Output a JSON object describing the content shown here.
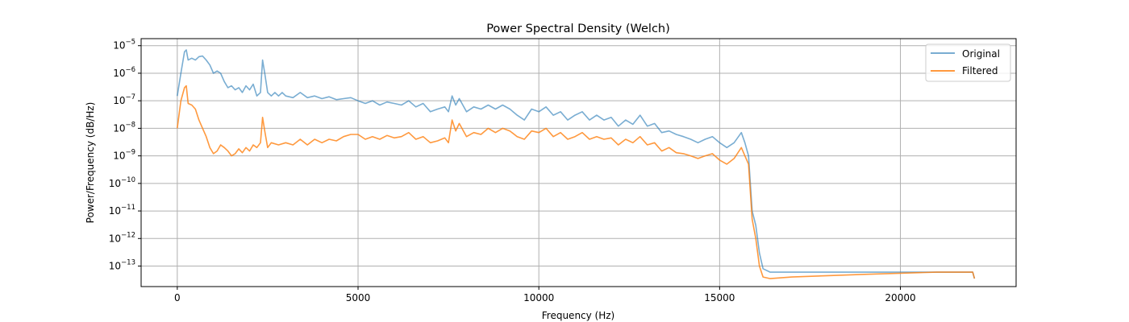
{
  "chart_data": {
    "type": "line",
    "title": "Power Spectral Density (Welch)",
    "xlabel": "Frequency (Hz)",
    "ylabel": "Power/Frequency (dB/Hz)",
    "xlim": [
      -1000,
      23200
    ],
    "ylim": [
      1.8e-14,
      1.8e-05
    ],
    "yscale": "log",
    "grid": true,
    "legend_position": "top-right",
    "x_ticks": [
      0,
      5000,
      10000,
      15000,
      20000
    ],
    "x_tick_labels": [
      "0",
      "5000",
      "10000",
      "15000",
      "20000"
    ],
    "y_ticks": [
      -13,
      -12,
      -11,
      -10,
      -9,
      -8,
      -7,
      -6,
      -5
    ],
    "y_tick_labels": [
      {
        "base": "10",
        "exp": "−13"
      },
      {
        "base": "10",
        "exp": "−12"
      },
      {
        "base": "10",
        "exp": "−11"
      },
      {
        "base": "10",
        "exp": "−10"
      },
      {
        "base": "10",
        "exp": "−9"
      },
      {
        "base": "10",
        "exp": "−8"
      },
      {
        "base": "10",
        "exp": "−7"
      },
      {
        "base": "10",
        "exp": "−6"
      },
      {
        "base": "10",
        "exp": "−5"
      }
    ],
    "series": [
      {
        "name": "Original",
        "color": "#1f77b4",
        "opacity": 0.6,
        "points": [
          [
            0,
            1.5e-07
          ],
          [
            100,
            1e-06
          ],
          [
            200,
            6e-06
          ],
          [
            250,
            7e-06
          ],
          [
            300,
            3e-06
          ],
          [
            400,
            3.5e-06
          ],
          [
            500,
            3e-06
          ],
          [
            600,
            4e-06
          ],
          [
            700,
            4.2e-06
          ],
          [
            800,
            3e-06
          ],
          [
            900,
            2e-06
          ],
          [
            1000,
            1e-06
          ],
          [
            1100,
            1.2e-06
          ],
          [
            1200,
            1e-06
          ],
          [
            1300,
            5e-07
          ],
          [
            1400,
            3e-07
          ],
          [
            1500,
            3.5e-07
          ],
          [
            1600,
            2.5e-07
          ],
          [
            1700,
            3e-07
          ],
          [
            1800,
            2e-07
          ],
          [
            1900,
            3.5e-07
          ],
          [
            2000,
            2.5e-07
          ],
          [
            2100,
            4e-07
          ],
          [
            2200,
            1.5e-07
          ],
          [
            2300,
            2e-07
          ],
          [
            2360,
            3e-06
          ],
          [
            2420,
            1e-06
          ],
          [
            2500,
            2e-07
          ],
          [
            2600,
            1.5e-07
          ],
          [
            2700,
            2e-07
          ],
          [
            2800,
            1.5e-07
          ],
          [
            2900,
            2e-07
          ],
          [
            3000,
            1.5e-07
          ],
          [
            3200,
            1.3e-07
          ],
          [
            3400,
            2e-07
          ],
          [
            3600,
            1.3e-07
          ],
          [
            3800,
            1.5e-07
          ],
          [
            4000,
            1.2e-07
          ],
          [
            4200,
            1.4e-07
          ],
          [
            4400,
            1.1e-07
          ],
          [
            4600,
            1.2e-07
          ],
          [
            4800,
            1.3e-07
          ],
          [
            5000,
            1e-07
          ],
          [
            5200,
            8e-08
          ],
          [
            5400,
            1e-07
          ],
          [
            5600,
            7e-08
          ],
          [
            5800,
            9e-08
          ],
          [
            6000,
            8e-08
          ],
          [
            6200,
            7e-08
          ],
          [
            6400,
            1e-07
          ],
          [
            6600,
            6e-08
          ],
          [
            6800,
            8e-08
          ],
          [
            7000,
            4e-08
          ],
          [
            7200,
            5e-08
          ],
          [
            7400,
            6e-08
          ],
          [
            7500,
            4e-08
          ],
          [
            7600,
            1.5e-07
          ],
          [
            7700,
            7e-08
          ],
          [
            7800,
            1.2e-07
          ],
          [
            8000,
            4e-08
          ],
          [
            8200,
            6e-08
          ],
          [
            8400,
            5e-08
          ],
          [
            8600,
            7e-08
          ],
          [
            8800,
            5e-08
          ],
          [
            9000,
            7e-08
          ],
          [
            9200,
            5e-08
          ],
          [
            9400,
            3e-08
          ],
          [
            9600,
            2e-08
          ],
          [
            9800,
            5e-08
          ],
          [
            10000,
            4e-08
          ],
          [
            10200,
            6e-08
          ],
          [
            10400,
            3e-08
          ],
          [
            10600,
            4e-08
          ],
          [
            10800,
            2e-08
          ],
          [
            11000,
            3e-08
          ],
          [
            11200,
            4e-08
          ],
          [
            11400,
            2e-08
          ],
          [
            11600,
            3e-08
          ],
          [
            11800,
            2e-08
          ],
          [
            12000,
            2.5e-08
          ],
          [
            12200,
            1.2e-08
          ],
          [
            12400,
            2e-08
          ],
          [
            12600,
            1.4e-08
          ],
          [
            12800,
            3e-08
          ],
          [
            13000,
            1.2e-08
          ],
          [
            13200,
            1.5e-08
          ],
          [
            13400,
            7e-09
          ],
          [
            13600,
            8e-09
          ],
          [
            13800,
            6e-09
          ],
          [
            14000,
            5e-09
          ],
          [
            14200,
            4e-09
          ],
          [
            14400,
            3e-09
          ],
          [
            14600,
            4e-09
          ],
          [
            14800,
            5e-09
          ],
          [
            15000,
            3e-09
          ],
          [
            15200,
            2e-09
          ],
          [
            15400,
            3e-09
          ],
          [
            15600,
            7e-09
          ],
          [
            15700,
            3e-09
          ],
          [
            15800,
            1e-09
          ],
          [
            15900,
            1e-11
          ],
          [
            16000,
            3e-12
          ],
          [
            16100,
            3e-13
          ],
          [
            16200,
            8e-14
          ],
          [
            16400,
            6e-14
          ],
          [
            17000,
            6e-14
          ],
          [
            18000,
            6e-14
          ],
          [
            19000,
            6e-14
          ],
          [
            20000,
            6e-14
          ],
          [
            21000,
            6e-14
          ],
          [
            22000,
            6e-14
          ],
          [
            22050,
            3.5e-14
          ]
        ]
      },
      {
        "name": "Filtered",
        "color": "#ff7f0e",
        "opacity": 0.8,
        "points": [
          [
            0,
            1e-08
          ],
          [
            100,
            1e-07
          ],
          [
            200,
            3e-07
          ],
          [
            250,
            3.5e-07
          ],
          [
            300,
            8e-08
          ],
          [
            400,
            7e-08
          ],
          [
            500,
            5e-08
          ],
          [
            600,
            2e-08
          ],
          [
            700,
            1e-08
          ],
          [
            800,
            5e-09
          ],
          [
            900,
            2e-09
          ],
          [
            1000,
            1.2e-09
          ],
          [
            1100,
            1.5e-09
          ],
          [
            1200,
            2.5e-09
          ],
          [
            1300,
            2e-09
          ],
          [
            1400,
            1.5e-09
          ],
          [
            1500,
            1e-09
          ],
          [
            1600,
            1.2e-09
          ],
          [
            1700,
            1.8e-09
          ],
          [
            1800,
            1.3e-09
          ],
          [
            1900,
            2e-09
          ],
          [
            2000,
            1.5e-09
          ],
          [
            2100,
            2.5e-09
          ],
          [
            2200,
            2e-09
          ],
          [
            2300,
            3e-09
          ],
          [
            2360,
            2.5e-08
          ],
          [
            2420,
            8e-09
          ],
          [
            2500,
            2e-09
          ],
          [
            2600,
            3e-09
          ],
          [
            2800,
            2.5e-09
          ],
          [
            3000,
            3e-09
          ],
          [
            3200,
            2.5e-09
          ],
          [
            3400,
            4e-09
          ],
          [
            3600,
            2.5e-09
          ],
          [
            3800,
            4e-09
          ],
          [
            4000,
            3e-09
          ],
          [
            4200,
            4e-09
          ],
          [
            4400,
            3.5e-09
          ],
          [
            4600,
            5e-09
          ],
          [
            4800,
            6e-09
          ],
          [
            5000,
            6e-09
          ],
          [
            5200,
            4e-09
          ],
          [
            5400,
            5e-09
          ],
          [
            5600,
            4e-09
          ],
          [
            5800,
            5.5e-09
          ],
          [
            6000,
            4.5e-09
          ],
          [
            6200,
            5e-09
          ],
          [
            6400,
            7e-09
          ],
          [
            6600,
            4e-09
          ],
          [
            6800,
            5e-09
          ],
          [
            7000,
            3e-09
          ],
          [
            7200,
            3.5e-09
          ],
          [
            7400,
            4.5e-09
          ],
          [
            7500,
            3e-09
          ],
          [
            7600,
            2e-08
          ],
          [
            7700,
            8e-09
          ],
          [
            7800,
            1.5e-08
          ],
          [
            8000,
            5e-09
          ],
          [
            8200,
            7e-09
          ],
          [
            8400,
            6e-09
          ],
          [
            8600,
            1e-08
          ],
          [
            8800,
            7e-09
          ],
          [
            9000,
            1e-08
          ],
          [
            9200,
            8e-09
          ],
          [
            9400,
            5e-09
          ],
          [
            9600,
            4e-09
          ],
          [
            9800,
            8e-09
          ],
          [
            10000,
            7e-09
          ],
          [
            10200,
            1e-08
          ],
          [
            10400,
            5e-09
          ],
          [
            10600,
            7e-09
          ],
          [
            10800,
            4e-09
          ],
          [
            11000,
            5e-09
          ],
          [
            11200,
            7e-09
          ],
          [
            11400,
            4e-09
          ],
          [
            11600,
            5e-09
          ],
          [
            11800,
            4e-09
          ],
          [
            12000,
            4.5e-09
          ],
          [
            12200,
            2.5e-09
          ],
          [
            12400,
            4e-09
          ],
          [
            12600,
            3e-09
          ],
          [
            12800,
            5e-09
          ],
          [
            13000,
            2.5e-09
          ],
          [
            13200,
            3e-09
          ],
          [
            13400,
            1.5e-09
          ],
          [
            13600,
            2e-09
          ],
          [
            13800,
            1.3e-09
          ],
          [
            14000,
            1.2e-09
          ],
          [
            14200,
            1e-09
          ],
          [
            14400,
            8e-10
          ],
          [
            14600,
            1e-09
          ],
          [
            14800,
            1.2e-09
          ],
          [
            15000,
            7e-10
          ],
          [
            15200,
            5e-10
          ],
          [
            15400,
            8e-10
          ],
          [
            15600,
            2e-09
          ],
          [
            15700,
            1e-09
          ],
          [
            15800,
            5e-10
          ],
          [
            15900,
            5e-12
          ],
          [
            16000,
            1e-12
          ],
          [
            16100,
            1e-13
          ],
          [
            16200,
            4e-14
          ],
          [
            16400,
            3.5e-14
          ],
          [
            17000,
            4e-14
          ],
          [
            18000,
            4.5e-14
          ],
          [
            19000,
            5e-14
          ],
          [
            20000,
            5.5e-14
          ],
          [
            21000,
            6e-14
          ],
          [
            22000,
            6e-14
          ],
          [
            22050,
            3.5e-14
          ]
        ]
      }
    ]
  }
}
